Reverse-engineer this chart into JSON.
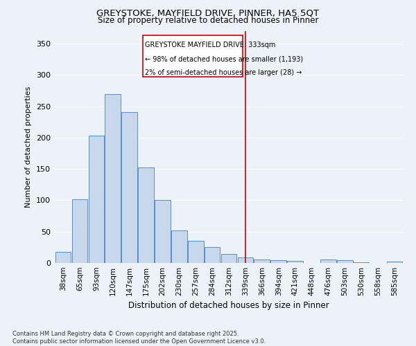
{
  "title1": "GREYSTOKE, MAYFIELD DRIVE, PINNER, HA5 5QT",
  "title2": "Size of property relative to detached houses in Pinner",
  "xlabel": "Distribution of detached houses by size in Pinner",
  "ylabel": "Number of detached properties",
  "bar_color": "#c8d8ec",
  "bar_edge_color": "#5b8ec4",
  "background_color": "#edf1f8",
  "grid_color": "#ffffff",
  "annotation_line_color": "#cc0000",
  "annotation_box_color": "#cc0000",
  "annotation_title": "GREYSTOKE MAYFIELD DRIVE: 333sqm",
  "annotation_line1": "← 98% of detached houses are smaller (1,193)",
  "annotation_line2": "2% of semi-detached houses are larger (28) →",
  "categories": [
    "38sqm",
    "65sqm",
    "93sqm",
    "120sqm",
    "147sqm",
    "175sqm",
    "202sqm",
    "230sqm",
    "257sqm",
    "284sqm",
    "312sqm",
    "339sqm",
    "366sqm",
    "394sqm",
    "421sqm",
    "448sqm",
    "476sqm",
    "503sqm",
    "530sqm",
    "558sqm",
    "585sqm"
  ],
  "values": [
    18,
    102,
    203,
    269,
    241,
    152,
    100,
    52,
    35,
    25,
    14,
    9,
    6,
    4,
    3,
    0,
    5,
    4,
    1,
    0,
    2
  ],
  "ylim": [
    0,
    370
  ],
  "yticks": [
    0,
    50,
    100,
    150,
    200,
    250,
    300,
    350
  ],
  "footnote": "Contains HM Land Registry data © Crown copyright and database right 2025.\nContains public sector information licensed under the Open Government Licence v3.0.",
  "vline_index": 11
}
